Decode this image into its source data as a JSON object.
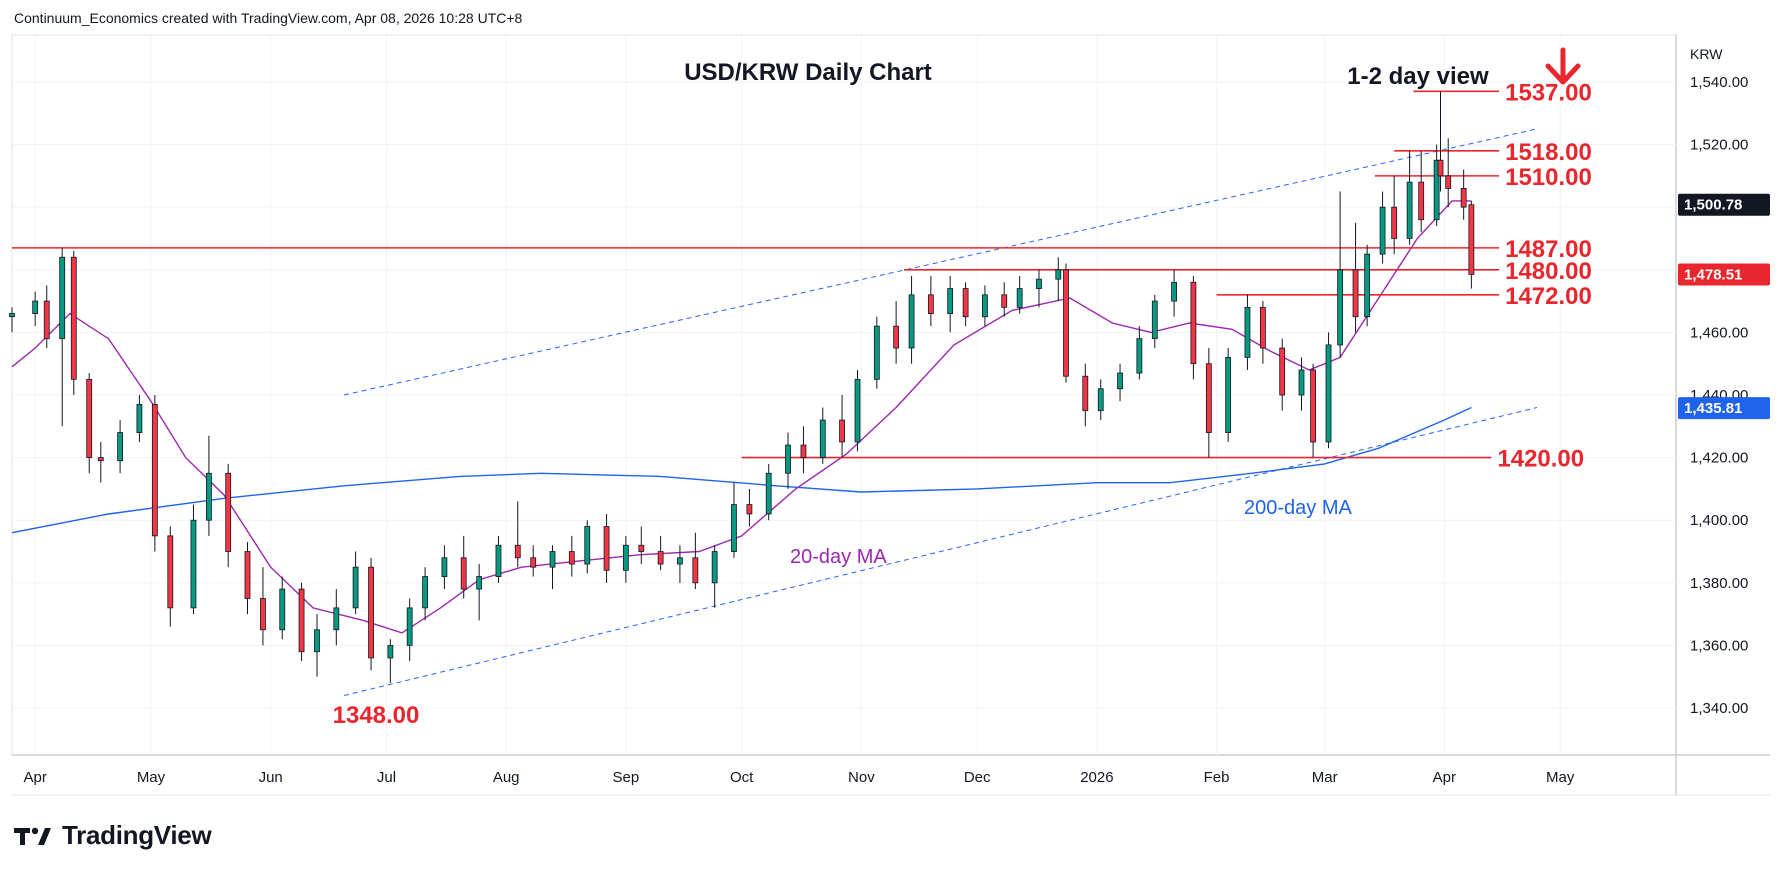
{
  "header": {
    "text": "Continuum_Economics created with TradingView.com, Apr 08, 2026 10:28 UTC+8"
  },
  "footer": {
    "brand": "TradingView"
  },
  "chart_data": {
    "type": "candlestick",
    "title": "USD/KRW Daily Chart",
    "view_label": "1-2 day view",
    "view_arrow_icon": "down-arrow-icon",
    "currency": "KRW",
    "ylim": [
      1325,
      1555
    ],
    "y_ticks": [
      {
        "value": 1340,
        "label": "1,340.00"
      },
      {
        "value": 1360,
        "label": "1,360.00"
      },
      {
        "value": 1380,
        "label": "1,380.00"
      },
      {
        "value": 1400,
        "label": "1,400.00"
      },
      {
        "value": 1420,
        "label": "1,420.00"
      },
      {
        "value": 1440,
        "label": "1,440.00"
      },
      {
        "value": 1460,
        "label": "1,460.00"
      },
      {
        "value": 1480,
        "label": "1,480.00"
      },
      {
        "value": 1500,
        "label": "1,500.00"
      },
      {
        "value": 1520,
        "label": "1,520.00"
      },
      {
        "value": 1540,
        "label": "1,540.00"
      }
    ],
    "x_ticks": [
      {
        "date": "2025-04-01",
        "label": "Apr"
      },
      {
        "date": "2025-05-01",
        "label": "May"
      },
      {
        "date": "2025-06-01",
        "label": "Jun"
      },
      {
        "date": "2025-07-01",
        "label": "Jul"
      },
      {
        "date": "2025-08-01",
        "label": "Aug"
      },
      {
        "date": "2025-09-01",
        "label": "Sep"
      },
      {
        "date": "2025-10-01",
        "label": "Oct"
      },
      {
        "date": "2025-11-01",
        "label": "Nov"
      },
      {
        "date": "2025-12-01",
        "label": "Dec"
      },
      {
        "date": "2026-01-01",
        "label": "2026"
      },
      {
        "date": "2026-02-01",
        "label": "Feb"
      },
      {
        "date": "2026-03-01",
        "label": "Mar"
      },
      {
        "date": "2026-04-01",
        "label": "Apr"
      },
      {
        "date": "2026-05-01",
        "label": "May"
      }
    ],
    "xlim": [
      "2025-03-26",
      "2026-05-31"
    ],
    "price_badges": [
      {
        "value": 1500.78,
        "label": "1,500.78",
        "color": "#131722"
      },
      {
        "value": 1478.51,
        "label": "1,478.51",
        "color": "#e8262d"
      },
      {
        "value": 1435.81,
        "label": "1,435.81",
        "color": "#1e63e9"
      }
    ],
    "levels": [
      {
        "value": 1537,
        "label": "1537.00",
        "start": "2026-03-24",
        "end": "2026-04-10"
      },
      {
        "value": 1518,
        "label": "1518.00",
        "start": "2026-03-19",
        "end": "2026-04-10"
      },
      {
        "value": 1510,
        "label": "1510.00",
        "start": "2026-03-14",
        "end": "2026-04-10"
      },
      {
        "value": 1487,
        "label": "1487.00",
        "start": "2025-03-26",
        "end": "2026-04-10"
      },
      {
        "value": 1480,
        "label": "1480.00",
        "start": "2025-11-12",
        "end": "2026-04-10"
      },
      {
        "value": 1472,
        "label": "1472.00",
        "start": "2026-02-01",
        "end": "2026-04-10"
      },
      {
        "value": 1420,
        "label": "1420.00",
        "start": "2025-10-01",
        "end": "2026-04-08"
      }
    ],
    "low_annotation": {
      "value": 1348,
      "label": "1348.00",
      "date": "2025-06-30"
    },
    "channel_upper": {
      "points": [
        {
          "date": "2025-06-20",
          "value": 1440
        },
        {
          "date": "2026-04-25",
          "value": 1525
        }
      ]
    },
    "channel_lower": {
      "points": [
        {
          "date": "2025-06-20",
          "value": 1344
        },
        {
          "date": "2026-04-25",
          "value": 1436
        }
      ]
    },
    "ma20_label": "20-day MA",
    "ma200_label": "200-day MA",
    "ma20": [
      {
        "date": "2025-03-26",
        "value": 1449
      },
      {
        "date": "2025-04-01",
        "value": 1455
      },
      {
        "date": "2025-04-10",
        "value": 1466
      },
      {
        "date": "2025-04-20",
        "value": 1458
      },
      {
        "date": "2025-05-01",
        "value": 1438
      },
      {
        "date": "2025-05-10",
        "value": 1420
      },
      {
        "date": "2025-05-20",
        "value": 1408
      },
      {
        "date": "2025-06-01",
        "value": 1385
      },
      {
        "date": "2025-06-12",
        "value": 1372
      },
      {
        "date": "2025-06-25",
        "value": 1368
      },
      {
        "date": "2025-07-05",
        "value": 1364
      },
      {
        "date": "2025-07-15",
        "value": 1372
      },
      {
        "date": "2025-07-25",
        "value": 1381
      },
      {
        "date": "2025-08-05",
        "value": 1385
      },
      {
        "date": "2025-08-20",
        "value": 1387
      },
      {
        "date": "2025-09-05",
        "value": 1389
      },
      {
        "date": "2025-09-20",
        "value": 1390
      },
      {
        "date": "2025-10-01",
        "value": 1395
      },
      {
        "date": "2025-10-15",
        "value": 1410
      },
      {
        "date": "2025-10-28",
        "value": 1421
      },
      {
        "date": "2025-11-10",
        "value": 1436
      },
      {
        "date": "2025-11-25",
        "value": 1456
      },
      {
        "date": "2025-12-10",
        "value": 1467
      },
      {
        "date": "2025-12-25",
        "value": 1471
      },
      {
        "date": "2026-01-05",
        "value": 1463
      },
      {
        "date": "2026-01-15",
        "value": 1460
      },
      {
        "date": "2026-01-25",
        "value": 1463
      },
      {
        "date": "2026-02-05",
        "value": 1461
      },
      {
        "date": "2026-02-15",
        "value": 1454
      },
      {
        "date": "2026-02-25",
        "value": 1448
      },
      {
        "date": "2026-03-05",
        "value": 1452
      },
      {
        "date": "2026-03-15",
        "value": 1471
      },
      {
        "date": "2026-03-25",
        "value": 1490
      },
      {
        "date": "2026-04-03",
        "value": 1502
      },
      {
        "date": "2026-04-08",
        "value": 1502
      }
    ],
    "ma200": [
      {
        "date": "2025-03-26",
        "value": 1396
      },
      {
        "date": "2025-04-20",
        "value": 1402
      },
      {
        "date": "2025-05-20",
        "value": 1407
      },
      {
        "date": "2025-06-20",
        "value": 1411
      },
      {
        "date": "2025-07-20",
        "value": 1414
      },
      {
        "date": "2025-08-10",
        "value": 1415
      },
      {
        "date": "2025-09-10",
        "value": 1414
      },
      {
        "date": "2025-10-10",
        "value": 1411
      },
      {
        "date": "2025-11-01",
        "value": 1409
      },
      {
        "date": "2025-12-01",
        "value": 1410
      },
      {
        "date": "2026-01-01",
        "value": 1412
      },
      {
        "date": "2026-01-20",
        "value": 1412
      },
      {
        "date": "2026-02-10",
        "value": 1415
      },
      {
        "date": "2026-03-01",
        "value": 1418
      },
      {
        "date": "2026-03-15",
        "value": 1423
      },
      {
        "date": "2026-04-01",
        "value": 1432
      },
      {
        "date": "2026-04-08",
        "value": 1436
      }
    ],
    "candles": [
      {
        "date": "2025-03-26",
        "open": 1465,
        "high": 1468,
        "low": 1460,
        "close": 1466
      },
      {
        "date": "2025-04-01",
        "open": 1466,
        "high": 1473,
        "low": 1462,
        "close": 1470
      },
      {
        "date": "2025-04-04",
        "open": 1470,
        "high": 1475,
        "low": 1455,
        "close": 1458
      },
      {
        "date": "2025-04-08",
        "open": 1458,
        "high": 1487,
        "low": 1430,
        "close": 1484
      },
      {
        "date": "2025-04-11",
        "open": 1484,
        "high": 1486,
        "low": 1440,
        "close": 1445
      },
      {
        "date": "2025-04-15",
        "open": 1445,
        "high": 1447,
        "low": 1415,
        "close": 1420
      },
      {
        "date": "2025-04-18",
        "open": 1420,
        "high": 1425,
        "low": 1412,
        "close": 1419
      },
      {
        "date": "2025-04-23",
        "open": 1419,
        "high": 1432,
        "low": 1415,
        "close": 1428
      },
      {
        "date": "2025-04-28",
        "open": 1428,
        "high": 1440,
        "low": 1425,
        "close": 1437
      },
      {
        "date": "2025-05-02",
        "open": 1437,
        "high": 1440,
        "low": 1390,
        "close": 1395
      },
      {
        "date": "2025-05-06",
        "open": 1395,
        "high": 1398,
        "low": 1366,
        "close": 1372
      },
      {
        "date": "2025-05-12",
        "open": 1372,
        "high": 1405,
        "low": 1370,
        "close": 1400
      },
      {
        "date": "2025-05-16",
        "open": 1400,
        "high": 1427,
        "low": 1395,
        "close": 1415
      },
      {
        "date": "2025-05-21",
        "open": 1415,
        "high": 1418,
        "low": 1385,
        "close": 1390
      },
      {
        "date": "2025-05-26",
        "open": 1390,
        "high": 1393,
        "low": 1370,
        "close": 1375
      },
      {
        "date": "2025-05-30",
        "open": 1375,
        "high": 1385,
        "low": 1360,
        "close": 1365
      },
      {
        "date": "2025-06-04",
        "open": 1365,
        "high": 1382,
        "low": 1362,
        "close": 1378
      },
      {
        "date": "2025-06-09",
        "open": 1378,
        "high": 1380,
        "low": 1355,
        "close": 1358
      },
      {
        "date": "2025-06-13",
        "open": 1358,
        "high": 1370,
        "low": 1350,
        "close": 1365
      },
      {
        "date": "2025-06-18",
        "open": 1365,
        "high": 1378,
        "low": 1360,
        "close": 1372
      },
      {
        "date": "2025-06-23",
        "open": 1372,
        "high": 1390,
        "low": 1370,
        "close": 1385
      },
      {
        "date": "2025-06-27",
        "open": 1385,
        "high": 1388,
        "low": 1352,
        "close": 1356
      },
      {
        "date": "2025-07-02",
        "open": 1356,
        "high": 1362,
        "low": 1348,
        "close": 1360
      },
      {
        "date": "2025-07-07",
        "open": 1360,
        "high": 1375,
        "low": 1355,
        "close": 1372
      },
      {
        "date": "2025-07-11",
        "open": 1372,
        "high": 1385,
        "low": 1368,
        "close": 1382
      },
      {
        "date": "2025-07-16",
        "open": 1382,
        "high": 1392,
        "low": 1378,
        "close": 1388
      },
      {
        "date": "2025-07-21",
        "open": 1388,
        "high": 1395,
        "low": 1375,
        "close": 1378
      },
      {
        "date": "2025-07-25",
        "open": 1378,
        "high": 1386,
        "low": 1368,
        "close": 1382
      },
      {
        "date": "2025-07-30",
        "open": 1382,
        "high": 1395,
        "low": 1380,
        "close": 1392
      },
      {
        "date": "2025-08-04",
        "open": 1392,
        "high": 1406,
        "low": 1385,
        "close": 1388
      },
      {
        "date": "2025-08-08",
        "open": 1388,
        "high": 1392,
        "low": 1382,
        "close": 1385
      },
      {
        "date": "2025-08-13",
        "open": 1385,
        "high": 1392,
        "low": 1378,
        "close": 1390
      },
      {
        "date": "2025-08-18",
        "open": 1390,
        "high": 1395,
        "low": 1382,
        "close": 1386
      },
      {
        "date": "2025-08-22",
        "open": 1386,
        "high": 1400,
        "low": 1383,
        "close": 1398
      },
      {
        "date": "2025-08-27",
        "open": 1398,
        "high": 1402,
        "low": 1380,
        "close": 1384
      },
      {
        "date": "2025-09-01",
        "open": 1384,
        "high": 1395,
        "low": 1380,
        "close": 1392
      },
      {
        "date": "2025-09-05",
        "open": 1392,
        "high": 1398,
        "low": 1386,
        "close": 1390
      },
      {
        "date": "2025-09-10",
        "open": 1390,
        "high": 1395,
        "low": 1384,
        "close": 1386
      },
      {
        "date": "2025-09-15",
        "open": 1386,
        "high": 1392,
        "low": 1380,
        "close": 1388
      },
      {
        "date": "2025-09-19",
        "open": 1388,
        "high": 1396,
        "low": 1378,
        "close": 1380
      },
      {
        "date": "2025-09-24",
        "open": 1380,
        "high": 1392,
        "low": 1372,
        "close": 1390
      },
      {
        "date": "2025-09-29",
        "open": 1390,
        "high": 1412,
        "low": 1388,
        "close": 1405
      },
      {
        "date": "2025-10-03",
        "open": 1405,
        "high": 1410,
        "low": 1398,
        "close": 1402
      },
      {
        "date": "2025-10-08",
        "open": 1402,
        "high": 1418,
        "low": 1400,
        "close": 1415
      },
      {
        "date": "2025-10-13",
        "open": 1415,
        "high": 1428,
        "low": 1410,
        "close": 1424
      },
      {
        "date": "2025-10-17",
        "open": 1424,
        "high": 1430,
        "low": 1415,
        "close": 1420
      },
      {
        "date": "2025-10-22",
        "open": 1420,
        "high": 1436,
        "low": 1418,
        "close": 1432
      },
      {
        "date": "2025-10-27",
        "open": 1432,
        "high": 1440,
        "low": 1420,
        "close": 1425
      },
      {
        "date": "2025-10-31",
        "open": 1425,
        "high": 1448,
        "low": 1422,
        "close": 1445
      },
      {
        "date": "2025-11-05",
        "open": 1445,
        "high": 1465,
        "low": 1442,
        "close": 1462
      },
      {
        "date": "2025-11-10",
        "open": 1462,
        "high": 1470,
        "low": 1450,
        "close": 1455
      },
      {
        "date": "2025-11-14",
        "open": 1455,
        "high": 1478,
        "low": 1450,
        "close": 1472
      },
      {
        "date": "2025-11-19",
        "open": 1472,
        "high": 1478,
        "low": 1462,
        "close": 1466
      },
      {
        "date": "2025-11-24",
        "open": 1466,
        "high": 1478,
        "low": 1460,
        "close": 1474
      },
      {
        "date": "2025-11-28",
        "open": 1474,
        "high": 1476,
        "low": 1462,
        "close": 1465
      },
      {
        "date": "2025-12-03",
        "open": 1465,
        "high": 1475,
        "low": 1462,
        "close": 1472
      },
      {
        "date": "2025-12-08",
        "open": 1472,
        "high": 1476,
        "low": 1465,
        "close": 1468
      },
      {
        "date": "2025-12-12",
        "open": 1468,
        "high": 1478,
        "low": 1466,
        "close": 1474
      },
      {
        "date": "2025-12-17",
        "open": 1474,
        "high": 1480,
        "low": 1468,
        "close": 1477
      },
      {
        "date": "2025-12-22",
        "open": 1477,
        "high": 1484,
        "low": 1470,
        "close": 1480
      },
      {
        "date": "2025-12-24",
        "open": 1480,
        "high": 1482,
        "low": 1444,
        "close": 1446
      },
      {
        "date": "2025-12-29",
        "open": 1446,
        "high": 1450,
        "low": 1430,
        "close": 1435
      },
      {
        "date": "2026-01-02",
        "open": 1435,
        "high": 1445,
        "low": 1432,
        "close": 1442
      },
      {
        "date": "2026-01-07",
        "open": 1442,
        "high": 1450,
        "low": 1438,
        "close": 1447
      },
      {
        "date": "2026-01-12",
        "open": 1447,
        "high": 1462,
        "low": 1445,
        "close": 1458
      },
      {
        "date": "2026-01-16",
        "open": 1458,
        "high": 1472,
        "low": 1455,
        "close": 1470
      },
      {
        "date": "2026-01-21",
        "open": 1470,
        "high": 1480,
        "low": 1465,
        "close": 1476
      },
      {
        "date": "2026-01-26",
        "open": 1476,
        "high": 1478,
        "low": 1445,
        "close": 1450
      },
      {
        "date": "2026-01-30",
        "open": 1450,
        "high": 1455,
        "low": 1420,
        "close": 1428
      },
      {
        "date": "2026-02-04",
        "open": 1428,
        "high": 1455,
        "low": 1425,
        "close": 1452
      },
      {
        "date": "2026-02-09",
        "open": 1452,
        "high": 1472,
        "low": 1448,
        "close": 1468
      },
      {
        "date": "2026-02-13",
        "open": 1468,
        "high": 1470,
        "low": 1450,
        "close": 1455
      },
      {
        "date": "2026-02-18",
        "open": 1455,
        "high": 1458,
        "low": 1435,
        "close": 1440
      },
      {
        "date": "2026-02-23",
        "open": 1440,
        "high": 1452,
        "low": 1435,
        "close": 1448
      },
      {
        "date": "2026-02-26",
        "open": 1448,
        "high": 1450,
        "low": 1420,
        "close": 1425
      },
      {
        "date": "2026-03-02",
        "open": 1425,
        "high": 1460,
        "low": 1423,
        "close": 1456
      },
      {
        "date": "2026-03-05",
        "open": 1456,
        "high": 1505,
        "low": 1452,
        "close": 1480
      },
      {
        "date": "2026-03-09",
        "open": 1480,
        "high": 1495,
        "low": 1460,
        "close": 1465
      },
      {
        "date": "2026-03-12",
        "open": 1465,
        "high": 1488,
        "low": 1462,
        "close": 1485
      },
      {
        "date": "2026-03-16",
        "open": 1485,
        "high": 1505,
        "low": 1482,
        "close": 1500
      },
      {
        "date": "2026-03-19",
        "open": 1500,
        "high": 1510,
        "low": 1485,
        "close": 1490
      },
      {
        "date": "2026-03-23",
        "open": 1490,
        "high": 1518,
        "low": 1488,
        "close": 1508
      },
      {
        "date": "2026-03-26",
        "open": 1508,
        "high": 1518,
        "low": 1492,
        "close": 1496
      },
      {
        "date": "2026-03-30",
        "open": 1496,
        "high": 1520,
        "low": 1494,
        "close": 1515
      },
      {
        "date": "2026-03-31",
        "open": 1515,
        "high": 1537,
        "low": 1505,
        "close": 1510
      },
      {
        "date": "2026-04-02",
        "open": 1510,
        "high": 1522,
        "low": 1500,
        "close": 1506
      },
      {
        "date": "2026-04-06",
        "open": 1506,
        "high": 1512,
        "low": 1496,
        "close": 1500
      },
      {
        "date": "2026-04-08",
        "open": 1500.78,
        "high": 1502,
        "low": 1474,
        "close": 1478.51
      }
    ]
  }
}
